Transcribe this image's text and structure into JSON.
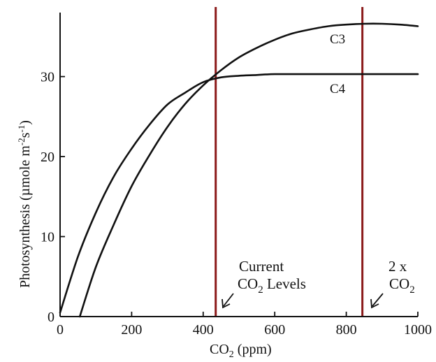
{
  "chart_data": {
    "type": "line",
    "xlabel": "CO2 (ppm)",
    "xlabel_parts": {
      "main": "CO",
      "sub": "2",
      "rest": " (ppm)"
    },
    "ylabel": "Photosynthesis (µmole m-2s-1)",
    "ylabel_parts": {
      "main": "Photosynthesis (µmole m",
      "sup1": "-2",
      "mid": "s",
      "sup2": "-1",
      "end": ")"
    },
    "xlim": [
      0,
      1000
    ],
    "ylim": [
      0,
      38
    ],
    "x_ticks": [
      0,
      200,
      400,
      600,
      800,
      1000
    ],
    "y_ticks": [
      0,
      10,
      20,
      30
    ],
    "grid": false,
    "series": [
      {
        "name": "C3",
        "x": [
          55,
          100,
          150,
          200,
          250,
          300,
          350,
          400,
          450,
          500,
          550,
          600,
          650,
          700,
          750,
          800,
          850,
          900,
          950,
          1000
        ],
        "y": [
          0,
          6.2,
          11.5,
          16.3,
          20.2,
          23.7,
          26.6,
          28.9,
          30.8,
          32.4,
          33.6,
          34.6,
          35.4,
          35.9,
          36.3,
          36.5,
          36.6,
          36.6,
          36.5,
          36.3
        ]
      },
      {
        "name": "C4",
        "x": [
          0,
          50,
          100,
          150,
          200,
          250,
          300,
          350,
          400,
          450,
          500,
          550,
          600,
          700,
          800,
          900,
          1000
        ],
        "y": [
          0.5,
          7.5,
          13.0,
          17.5,
          21.0,
          24.0,
          26.5,
          28.0,
          29.3,
          29.9,
          30.1,
          30.2,
          30.3,
          30.3,
          30.3,
          30.3,
          30.3
        ]
      }
    ],
    "vertical_lines": [
      {
        "x": 435,
        "color": "#8b1a1a"
      },
      {
        "x": 845,
        "color": "#8b1a1a"
      }
    ],
    "annotations": [
      {
        "line1": "Current",
        "line2_main": "CO",
        "line2_sub": "2",
        "line2_rest": " Levels"
      },
      {
        "line1": "2 x",
        "line2_main": "CO",
        "line2_sub": "2",
        "line2_rest": ""
      }
    ]
  }
}
